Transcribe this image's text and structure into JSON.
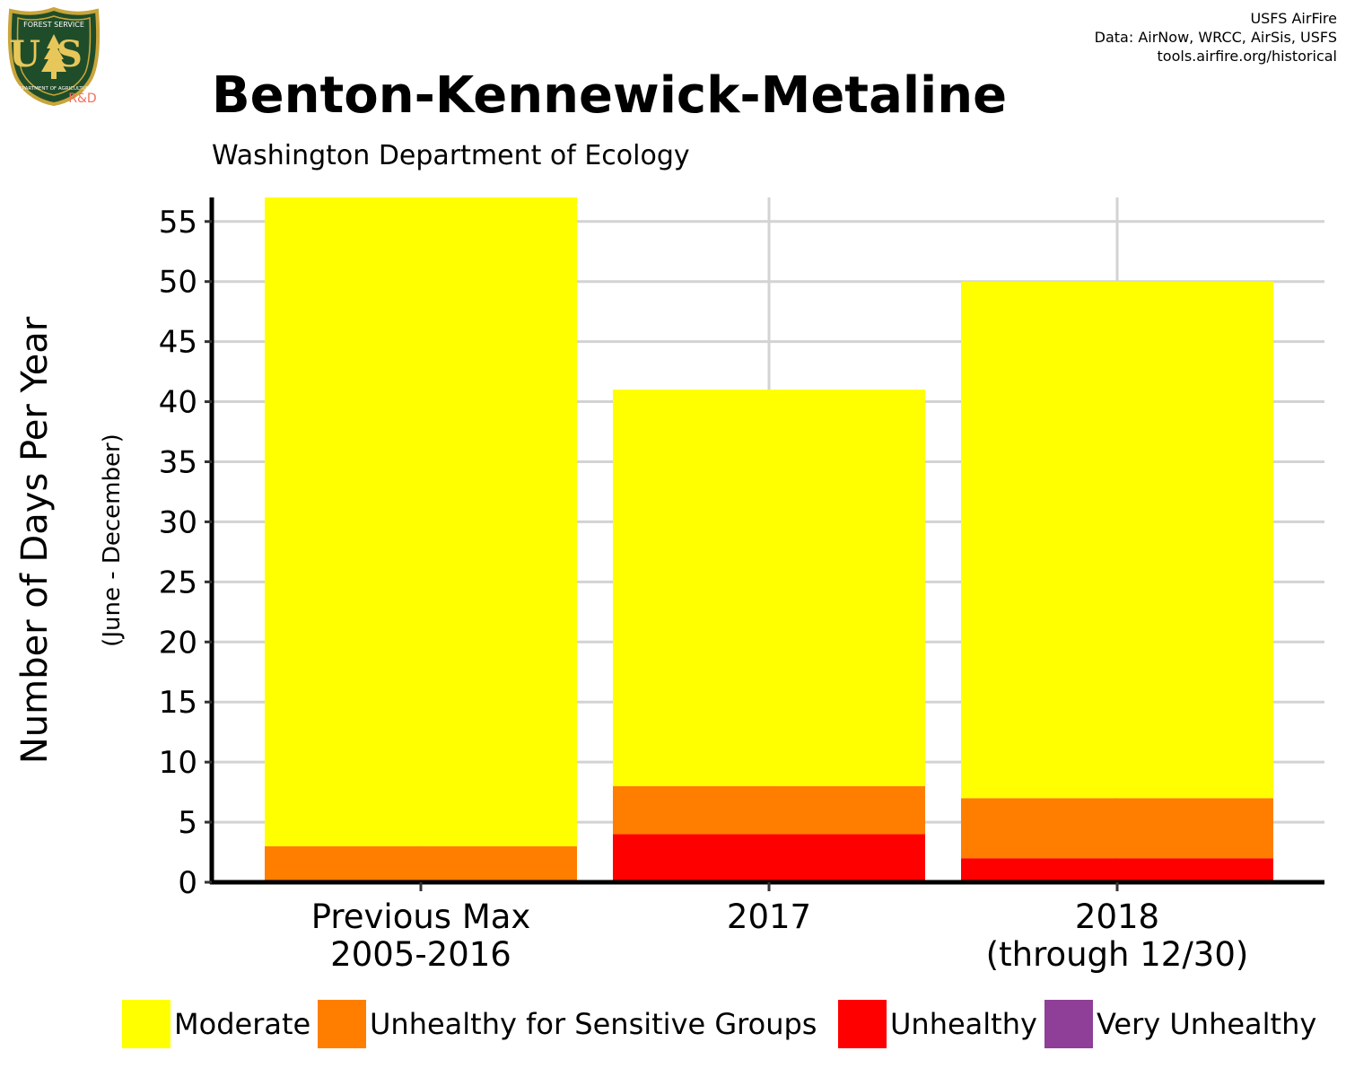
{
  "header": {
    "title": "Benton-Kennewick-Metaline",
    "subtitle": "Washington Department of Ecology",
    "credits": [
      "USFS AirFire",
      "Data: AirNow, WRCC, AirSis, USFS",
      "tools.airfire.org/historical"
    ]
  },
  "logo": {
    "text_top": "FOREST SERVICE",
    "text_main": "US",
    "text_bottom": "DEPARTMENT OF AGRICULTURE",
    "rd": "R&D"
  },
  "colors": {
    "Moderate": "#FFFF00",
    "Unhealthy for Sensitive Groups": "#FF7E00",
    "Unhealthy": "#FF0000",
    "Very Unhealthy": "#8F3F97"
  },
  "chart_data": {
    "type": "bar",
    "stacked": true,
    "categories": [
      [
        "Previous Max",
        "2005-2016"
      ],
      [
        "2017"
      ],
      [
        "2018",
        "(through 12/30)"
      ]
    ],
    "series": [
      {
        "name": "Unhealthy",
        "values": [
          0,
          4,
          2
        ]
      },
      {
        "name": "Unhealthy for Sensitive Groups",
        "values": [
          3,
          4,
          5
        ]
      },
      {
        "name": "Moderate",
        "values": [
          54,
          33,
          43
        ]
      },
      {
        "name": "Very Unhealthy",
        "values": [
          0,
          0,
          0
        ]
      }
    ],
    "ylabel": "Number of Days Per Year",
    "ylabel_sub": "(June - December)",
    "ylim": [
      0,
      57
    ],
    "yticks": [
      0,
      5,
      10,
      15,
      20,
      25,
      30,
      35,
      40,
      45,
      50,
      55
    ],
    "grid": true,
    "legend": [
      "Moderate",
      "Unhealthy for Sensitive Groups",
      "Unhealthy",
      "Very Unhealthy"
    ],
    "legend_position": "bottom"
  }
}
